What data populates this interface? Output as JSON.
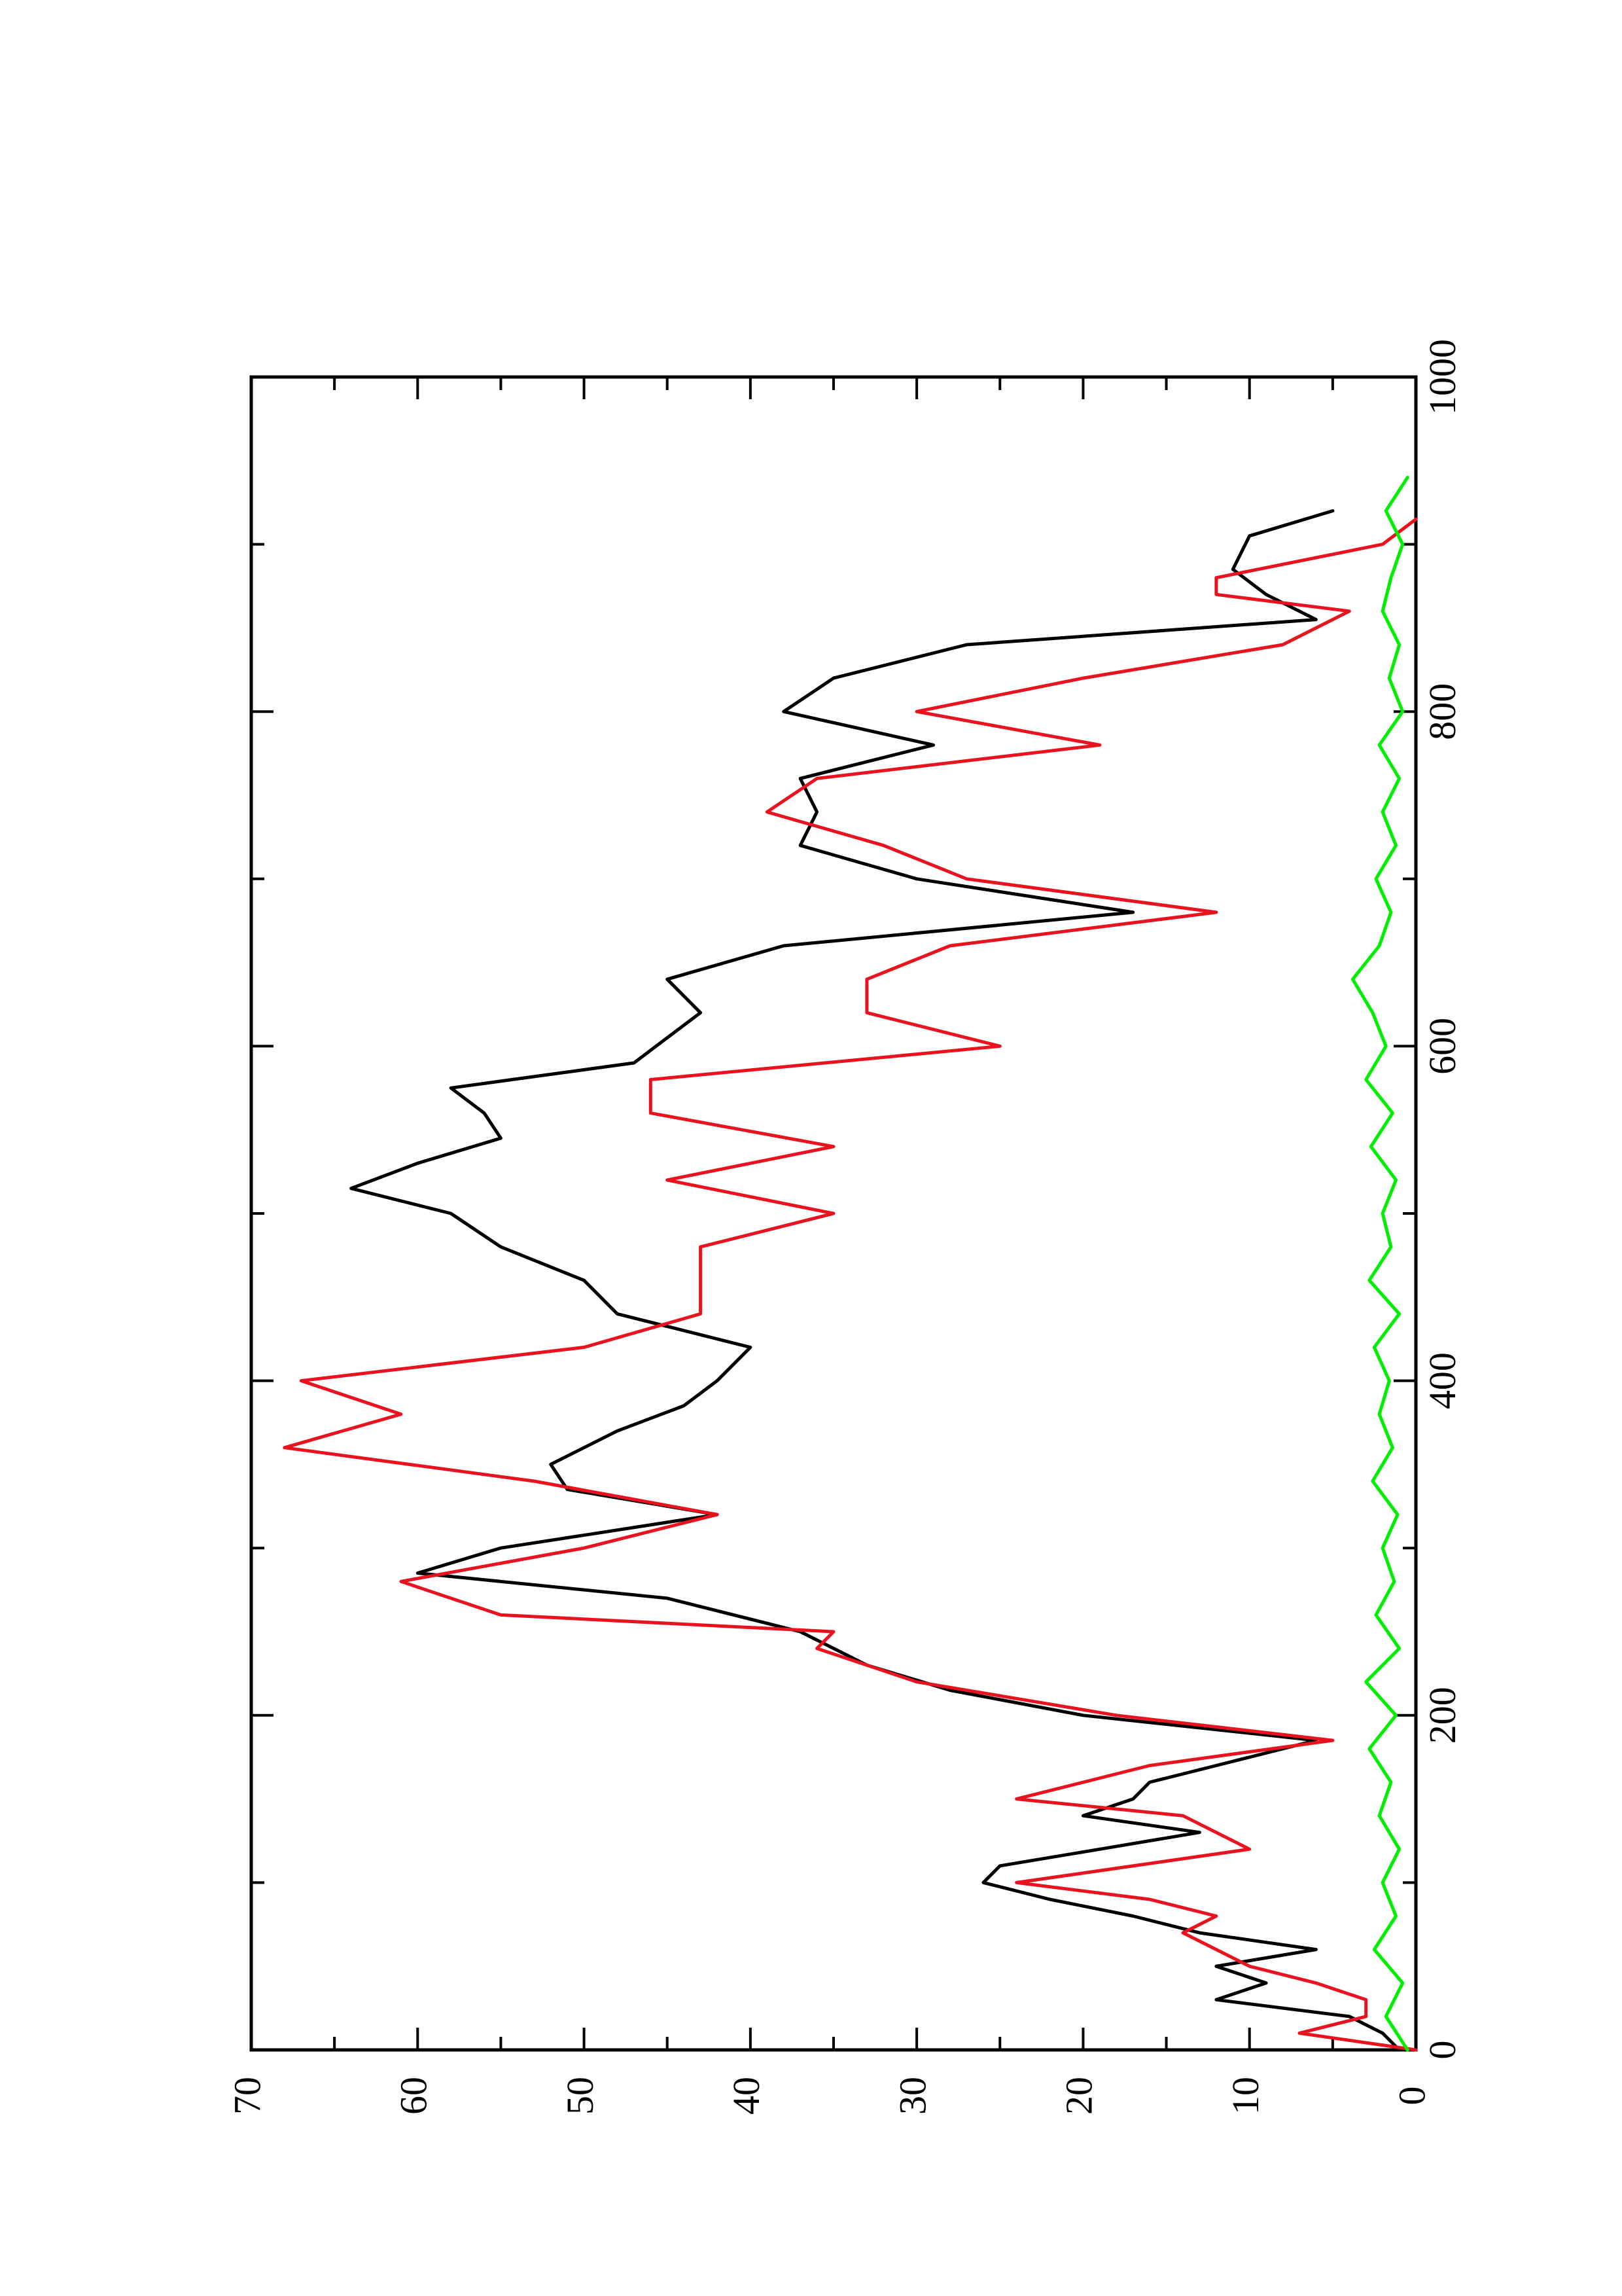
{
  "chart_data": {
    "type": "line",
    "title": "",
    "xlabel": "",
    "ylabel": "",
    "orientation": "rotated-90-counterclockwise",
    "grid": false,
    "legend": "none",
    "xlim": [
      0,
      1000
    ],
    "ylim": [
      0,
      70
    ],
    "x_ticks": [
      "0",
      "200",
      "400",
      "600",
      "800",
      "1000"
    ],
    "y_ticks": [
      "0",
      "10",
      "20",
      "30",
      "40",
      "50",
      "60",
      "70"
    ],
    "series": [
      {
        "color": "#000000",
        "x": [
          0,
          10,
          20,
          30,
          40,
          50,
          60,
          70,
          80,
          90,
          100,
          110,
          120,
          130,
          140,
          150,
          160,
          170,
          185,
          200,
          215,
          230,
          250,
          270,
          285,
          300,
          320,
          335,
          350,
          370,
          385,
          400,
          420,
          440,
          460,
          480,
          500,
          515,
          530,
          545,
          560,
          575,
          590,
          605,
          620,
          640,
          660,
          680,
          700,
          720,
          740,
          760,
          780,
          800,
          820,
          840,
          855,
          870,
          885,
          905,
          920
        ],
        "values": [
          1,
          2,
          4,
          12,
          9,
          12,
          6,
          13,
          17,
          22,
          26,
          25,
          19,
          13,
          20,
          17,
          16,
          12,
          6,
          20,
          28,
          33,
          37,
          45,
          60,
          55,
          42,
          51,
          52,
          48,
          44,
          42,
          40,
          48,
          50,
          55,
          58,
          64,
          60,
          55,
          56,
          58,
          47,
          45,
          43,
          45,
          38,
          17,
          30,
          37,
          36,
          37,
          29,
          38,
          35,
          27,
          6,
          9,
          11,
          10,
          5
        ]
      },
      {
        "color": "#e8131f",
        "x": [
          0,
          10,
          20,
          30,
          40,
          50,
          60,
          70,
          80,
          90,
          100,
          120,
          140,
          150,
          170,
          185,
          200,
          220,
          240,
          250,
          260,
          280,
          300,
          320,
          340,
          360,
          380,
          400,
          420,
          440,
          460,
          480,
          500,
          520,
          540,
          560,
          580,
          600,
          620,
          640,
          660,
          680,
          700,
          720,
          740,
          760,
          780,
          800,
          820,
          840,
          860,
          870,
          880,
          900,
          915
        ],
        "values": [
          0,
          7,
          3,
          3,
          6,
          10,
          12,
          14,
          12,
          16,
          24,
          10,
          14,
          24,
          16,
          5,
          18,
          30,
          36,
          35,
          55,
          61,
          50,
          42,
          53,
          68,
          61,
          67,
          50,
          43,
          43,
          43,
          35,
          45,
          35,
          46,
          46,
          25,
          33,
          33,
          28,
          12,
          27,
          32,
          39,
          36,
          19,
          30,
          20,
          8,
          4,
          12,
          12,
          2,
          0
        ]
      },
      {
        "color": "#00ee00",
        "x": [
          0,
          20,
          40,
          60,
          80,
          100,
          120,
          140,
          160,
          180,
          200,
          220,
          240,
          260,
          280,
          300,
          320,
          340,
          360,
          380,
          400,
          420,
          440,
          460,
          480,
          500,
          520,
          540,
          560,
          580,
          600,
          620,
          640,
          660,
          680,
          700,
          720,
          740,
          760,
          780,
          800,
          820,
          840,
          860,
          880,
          900,
          920,
          940
        ],
        "values": [
          0.5,
          1.8,
          0.8,
          2.5,
          1.2,
          2.0,
          1.0,
          2.2,
          1.5,
          2.8,
          1.2,
          3.0,
          1.0,
          2.4,
          1.3,
          2.0,
          1.1,
          2.6,
          1.4,
          2.2,
          1.6,
          2.5,
          1.0,
          2.8,
          1.5,
          2.0,
          1.2,
          2.7,
          1.4,
          3.0,
          1.8,
          2.6,
          3.8,
          2.2,
          1.5,
          2.4,
          1.2,
          2.0,
          1.0,
          2.2,
          0.8,
          1.6,
          1.0,
          2.0,
          1.5,
          0.8,
          1.8,
          0.5
        ]
      }
    ]
  }
}
